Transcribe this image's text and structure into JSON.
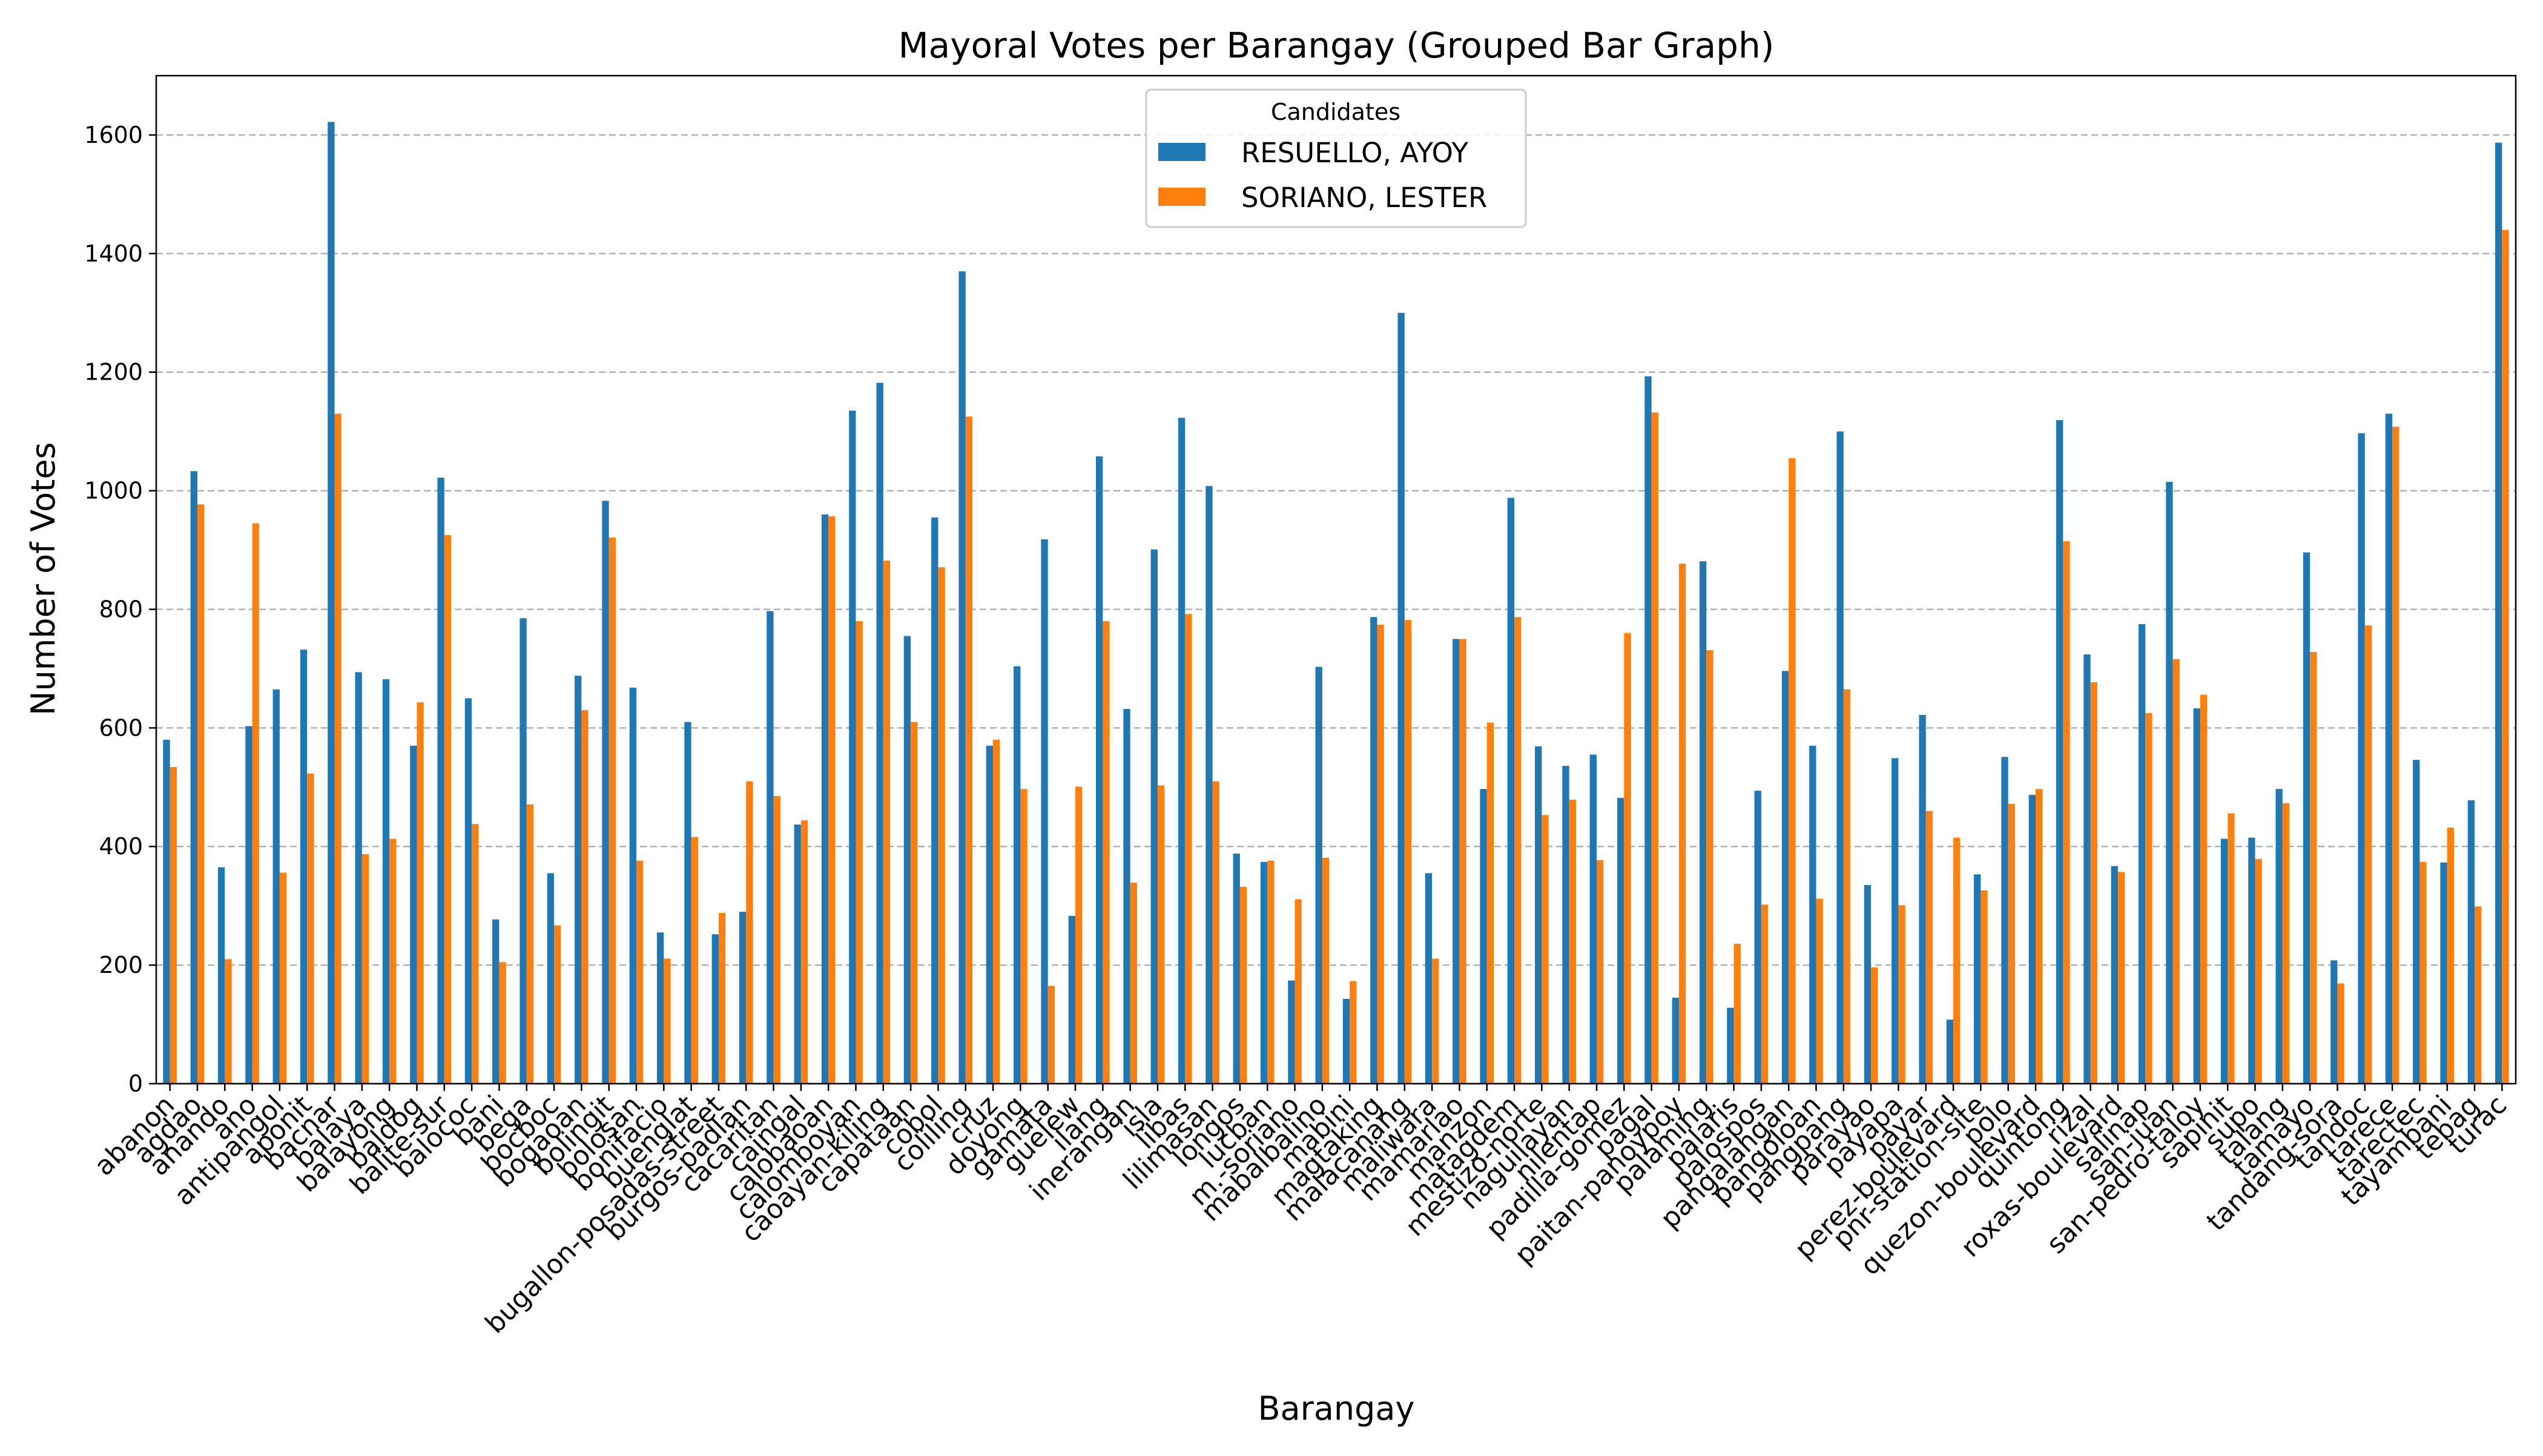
{
  "chart_data": {
    "type": "bar",
    "title": "Mayoral Votes per Barangay (Grouped Bar Graph)",
    "xlabel": "Barangay",
    "ylabel": "Number of Votes",
    "ylim": [
      0,
      1700
    ],
    "yticks": [
      0,
      200,
      400,
      600,
      800,
      1000,
      1200,
      1400,
      1600
    ],
    "grid": "y, dashed",
    "legend": {
      "title": "Candidates",
      "placement": "top-center"
    },
    "categories": [
      "abanon",
      "agdao",
      "anando",
      "ano",
      "antipangol",
      "aponit",
      "bacnar",
      "balaya",
      "balayong",
      "baldog",
      "balite-sur",
      "balococ",
      "bani",
      "bega",
      "bocboc",
      "bogaoan",
      "bolingit",
      "bolosan",
      "bonifacio",
      "buenglat",
      "bugallon-posadas-street",
      "burgos-padlan",
      "cacaritan",
      "caingal",
      "calobaoan",
      "calomboyan",
      "caoayan-kiling",
      "capataan",
      "cobol",
      "coliling",
      "cruz",
      "doyong",
      "gamata",
      "guelew",
      "ilang",
      "inerangan",
      "isla",
      "libas",
      "lilimasan",
      "longos",
      "lucban",
      "m.-soriano",
      "mabalbalino",
      "mabini",
      "magtaking",
      "malacanang",
      "maliwara",
      "mamarlao",
      "manzon",
      "matagdem",
      "mestizo-norte",
      "naguilayan",
      "nilentap",
      "padilla-gomez",
      "pagal",
      "paitan-panoypoy",
      "palaming",
      "palaris",
      "palospos",
      "pangalangan",
      "pangoloan",
      "pangpang",
      "parayao",
      "payapa",
      "payar",
      "perez-boulevard",
      "pnr-station-site",
      "polo",
      "quezon-boulevard",
      "quintong",
      "rizal",
      "roxas-boulevard",
      "salinap",
      "san-juan",
      "san-pedro-taloy",
      "sapinit",
      "supo",
      "talang",
      "tamayo",
      "tandang-sora",
      "tandoc",
      "tarece",
      "tarectec",
      "tayambani",
      "tebag",
      "turac"
    ],
    "series": [
      {
        "name": "RESUELLO, AYOY",
        "color": "#1f77b4",
        "values": [
          580,
          1033,
          365,
          603,
          665,
          732,
          1622,
          694,
          682,
          570,
          1022,
          650,
          277,
          785,
          355,
          688,
          983,
          668,
          255,
          610,
          252,
          290,
          797,
          437,
          960,
          1135,
          1182,
          755,
          955,
          1370,
          570,
          704,
          918,
          283,
          1058,
          632,
          901,
          1123,
          1008,
          388,
          374,
          174,
          703,
          143,
          787,
          1300,
          355,
          750,
          497,
          988,
          569,
          536,
          555,
          482,
          1193,
          145,
          881,
          128,
          494,
          696,
          570,
          1100,
          335,
          549,
          622,
          108,
          353,
          551,
          487,
          1119,
          724,
          367,
          775,
          1015,
          633,
          413,
          415,
          497,
          896,
          208,
          1097,
          1130,
          546,
          373,
          478,
          1587
        ]
      },
      {
        "name": "SORIANO, LESTER",
        "color": "#ff7f0e",
        "values": [
          534,
          977,
          210,
          945,
          356,
          523,
          1130,
          387,
          413,
          643,
          925,
          438,
          205,
          471,
          267,
          630,
          921,
          376,
          211,
          416,
          288,
          510,
          485,
          444,
          957,
          780,
          882,
          610,
          871,
          1125,
          580,
          497,
          165,
          501,
          780,
          339,
          503,
          792,
          510,
          332,
          376,
          311,
          381,
          173,
          774,
          782,
          211,
          750,
          609,
          787,
          453,
          479,
          377,
          760,
          1132,
          877,
          731,
          236,
          302,
          1055,
          312,
          665,
          196,
          301,
          460,
          415,
          326,
          472,
          497,
          915,
          677,
          357,
          625,
          716,
          656,
          456,
          379,
          473,
          728,
          169,
          773,
          1108,
          374,
          432,
          299,
          1440
        ]
      }
    ]
  }
}
